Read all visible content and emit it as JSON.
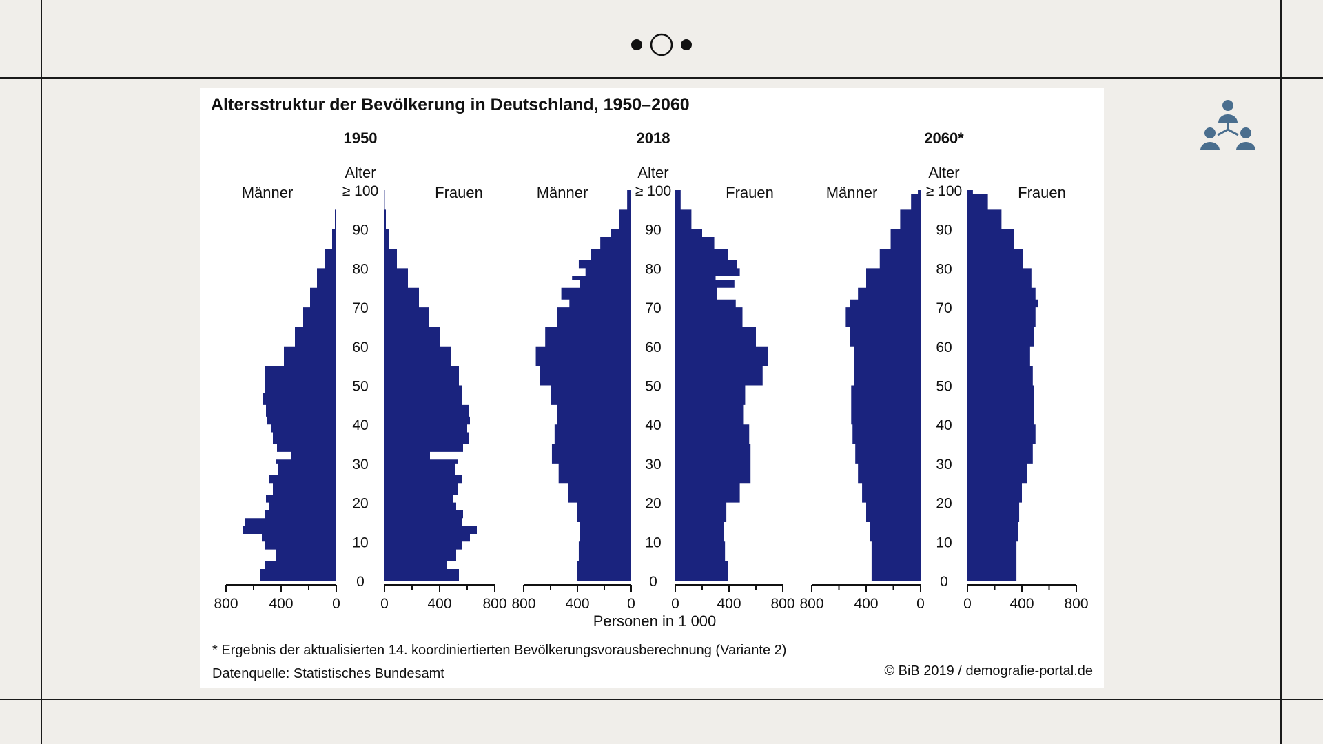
{
  "slide": {
    "accent_color": "#4a6e8e",
    "decoration_icon": "three-people-network-icon",
    "top_ornament_icon": "dot-circle-dot-icon"
  },
  "chart_data": {
    "type": "population-pyramid",
    "title": "Altersstruktur der Bevölkerung in Deutschland, 1950–2060",
    "bar_color": "#1a237e",
    "x_unit_label": "Personen in 1 000",
    "left_label": "Männer",
    "right_label": "Frauen",
    "age_axis_label": "Alter",
    "age_ticks": [
      "0",
      "10",
      "20",
      "30",
      "40",
      "50",
      "60",
      "70",
      "80",
      "90",
      "≥ 100"
    ],
    "x_ticks": [
      "800",
      "400",
      "0"
    ],
    "x_ticks_right": [
      "0",
      "400",
      "800"
    ],
    "xlim": [
      0,
      800
    ],
    "age_range": [
      0,
      100
    ],
    "footnote": "* Ergebnis der aktualisierten 14. koordiniertierten Bevölkerungsvorausberechnung (Variante 2)",
    "source": "Datenquelle: Statistisches Bundesamt",
    "credit": "© BiB 2019 / demografie-portal.de",
    "pyramids": [
      {
        "year": "1950",
        "ages": [
          0,
          3,
          5,
          8,
          10,
          12,
          14,
          16,
          18,
          20,
          22,
          25,
          27,
          30,
          31,
          33,
          35,
          38,
          40,
          42,
          45,
          48,
          50,
          55,
          60,
          65,
          70,
          75,
          80,
          85,
          90,
          95,
          100
        ],
        "men": [
          550,
          520,
          440,
          520,
          540,
          680,
          660,
          520,
          490,
          510,
          460,
          490,
          420,
          440,
          330,
          430,
          460,
          470,
          500,
          510,
          530,
          520,
          520,
          380,
          300,
          240,
          190,
          140,
          80,
          30,
          10,
          2,
          0
        ],
        "women": [
          540,
          450,
          520,
          560,
          620,
          670,
          560,
          570,
          520,
          500,
          530,
          560,
          510,
          530,
          330,
          570,
          610,
          600,
          620,
          610,
          560,
          560,
          540,
          480,
          400,
          320,
          250,
          170,
          90,
          35,
          10,
          2,
          0
        ]
      },
      {
        "year": "2018",
        "ages": [
          0,
          5,
          10,
          15,
          20,
          25,
          30,
          35,
          40,
          45,
          50,
          55,
          60,
          65,
          70,
          72,
          75,
          77,
          78,
          80,
          82,
          85,
          88,
          90,
          95,
          100
        ],
        "men": [
          400,
          390,
          380,
          400,
          470,
          540,
          590,
          570,
          550,
          600,
          680,
          710,
          640,
          550,
          460,
          520,
          380,
          440,
          340,
          390,
          300,
          230,
          150,
          90,
          30,
          5
        ],
        "women": [
          390,
          370,
          360,
          380,
          480,
          560,
          560,
          550,
          510,
          520,
          650,
          690,
          600,
          500,
          450,
          310,
          440,
          300,
          480,
          460,
          390,
          290,
          200,
          120,
          40,
          5
        ]
      },
      {
        "year": "2060*",
        "ages": [
          0,
          5,
          10,
          15,
          20,
          25,
          30,
          35,
          40,
          45,
          50,
          55,
          60,
          65,
          70,
          72,
          75,
          80,
          85,
          90,
          95,
          99,
          100
        ],
        "men": [
          360,
          360,
          370,
          400,
          430,
          460,
          480,
          500,
          510,
          510,
          490,
          490,
          520,
          550,
          520,
          460,
          400,
          300,
          220,
          150,
          70,
          20,
          40
        ],
        "women": [
          360,
          360,
          370,
          380,
          400,
          440,
          480,
          500,
          490,
          490,
          480,
          460,
          490,
          500,
          520,
          500,
          470,
          410,
          340,
          250,
          150,
          40,
          70
        ]
      }
    ]
  }
}
